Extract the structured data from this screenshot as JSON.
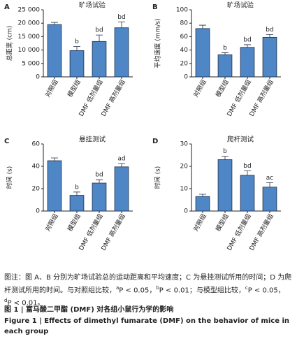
{
  "chart_data": [
    {
      "type": "bar",
      "panel": "A",
      "title": "旷场试验",
      "y_label": "总距离 (cm)",
      "categories": [
        "对照组",
        "模型组",
        "DMF 低剂量组",
        "DMF 高剂量组"
      ],
      "values": [
        19500,
        9800,
        13200,
        18300
      ],
      "errors": [
        800,
        1500,
        2400,
        2200
      ],
      "annotations": [
        null,
        "b",
        "bd",
        "bd"
      ],
      "color": "#4f86c6",
      "ylim": [
        0,
        25000
      ],
      "yticks": [
        0,
        {
          "value": 5000,
          "label": "5 000"
        },
        {
          "value": 10000,
          "label": "10 000"
        },
        {
          "value": 15000,
          "label": "15 000"
        },
        {
          "value": 20000,
          "label": "20 000"
        },
        {
          "value": 25000,
          "label": "25 000"
        }
      ]
    },
    {
      "type": "bar",
      "panel": "B",
      "title": "旷场试验",
      "y_label": "平均速度 (mm/s)",
      "categories": [
        "对照组",
        "模型组",
        "DMF 低剂量组",
        "DMF 高剂量组"
      ],
      "values": [
        72,
        33,
        44,
        59
      ],
      "errors": [
        5,
        3,
        4,
        4
      ],
      "annotations": [
        null,
        "b",
        "bd",
        "bd"
      ],
      "color": "#4f86c6",
      "ylim": [
        0,
        100
      ],
      "yticks": [
        0,
        20,
        40,
        60,
        80,
        100
      ]
    },
    {
      "type": "bar",
      "panel": "C",
      "title": "悬挂测试",
      "y_label": "时间 (s)",
      "categories": [
        "对照组",
        "模型组",
        "DMF 低剂量组",
        "DMF 高剂量组"
      ],
      "values": [
        45,
        14,
        25,
        39.5
      ],
      "errors": [
        2.5,
        3,
        3,
        3
      ],
      "annotations": [
        null,
        "b",
        "bd",
        "ad"
      ],
      "color": "#4f86c6",
      "ylim": [
        0,
        60
      ],
      "yticks": [
        0,
        20,
        40,
        60
      ]
    },
    {
      "type": "bar",
      "panel": "D",
      "title": "爬杆测试",
      "y_label": "时间 (s)",
      "categories": [
        "对照组",
        "模型组",
        "DMF 低剂量组",
        "DMF 高剂量组"
      ],
      "values": [
        6.5,
        23,
        16,
        10.7
      ],
      "errors": [
        1,
        1.5,
        2,
        2
      ],
      "annotations": [
        null,
        "b",
        "bd",
        "ac"
      ],
      "color": "#4f86c6",
      "ylim": [
        0,
        30
      ],
      "yticks": [
        0,
        10,
        20,
        30
      ]
    }
  ],
  "caption": {
    "note": [
      "图注：图 A、B 分别为旷场试验总的运动距离和平均速度；C 为悬挂测试所用的时间；D 为爬杆测试所用的时间。与对照组比较，",
      "a",
      "P < 0.05，",
      "b",
      "P < 0.01；与模型组比较，",
      "c",
      "P < 0.05，",
      "d",
      "P < 0.01。"
    ],
    "title_cn": "图 1 | 富马酸二甲酯 (DMF) 对各组小鼠行为学的影响",
    "title_en": "Figure 1 | Effects of dimethyl fumarate (DMF) on the behavior of mice in each group"
  }
}
